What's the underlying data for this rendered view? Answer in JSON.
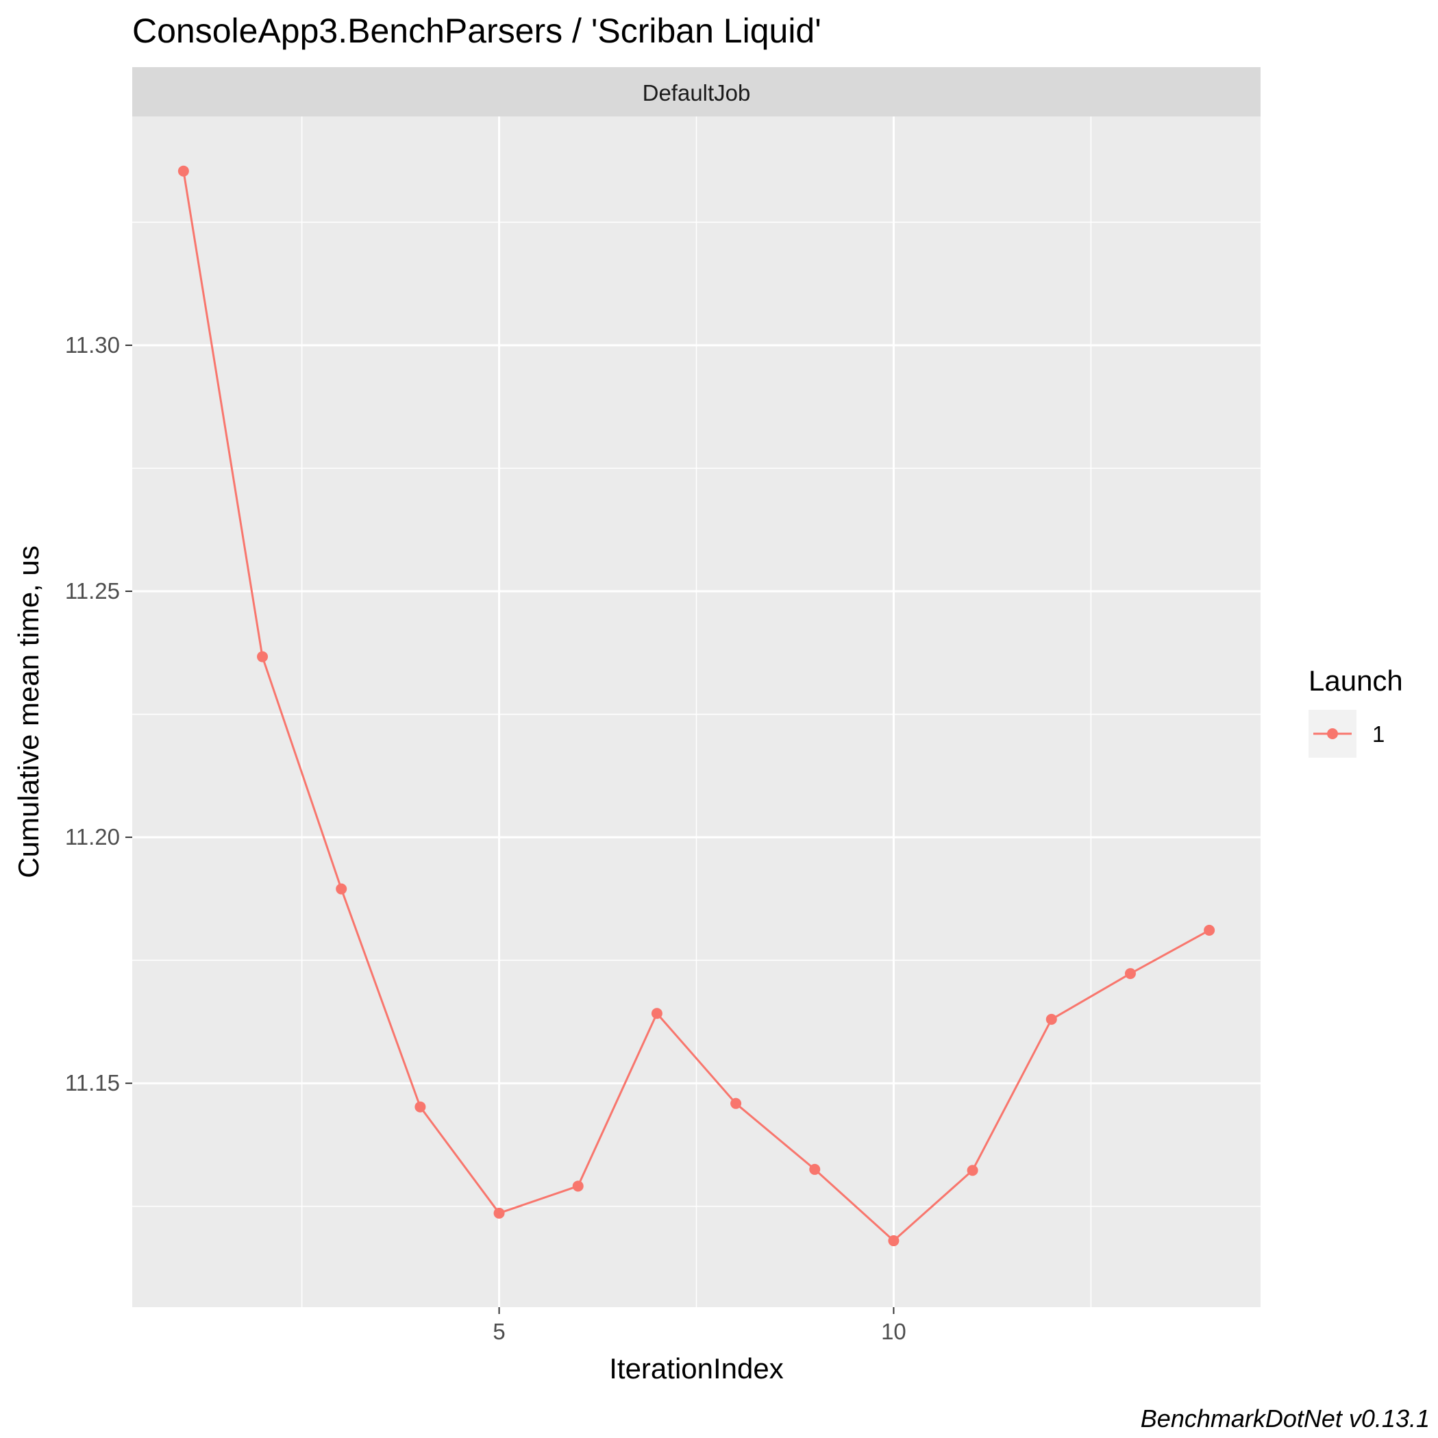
{
  "chart_data": {
    "type": "line",
    "title": "ConsoleApp3.BenchParsers / 'Scriban Liquid'",
    "facet_label": "DefaultJob",
    "xlabel": "IterationIndex",
    "ylabel": "Cumulative mean time, us",
    "caption": "BenchmarkDotNet v0.13.1",
    "xlim": [
      0.35,
      14.65
    ],
    "ylim": [
      11.1045,
      11.3465
    ],
    "x_ticks": [
      5,
      10
    ],
    "x_tick_labels": [
      "5",
      "10"
    ],
    "y_ticks": [
      11.15,
      11.2,
      11.25,
      11.3
    ],
    "y_tick_labels": [
      "11.15",
      "11.20",
      "11.25",
      "11.30"
    ],
    "grid": true,
    "legend": {
      "title": "Launch",
      "position": "right",
      "entries": [
        "1"
      ]
    },
    "series": [
      {
        "name": "1",
        "color": "#F8766D",
        "x": [
          1,
          2,
          3,
          4,
          5,
          6,
          7,
          8,
          9,
          10,
          11,
          12,
          13,
          14
        ],
        "y": [
          11.3354,
          11.2367,
          11.1895,
          11.1452,
          11.1236,
          11.1291,
          11.1642,
          11.1459,
          11.1325,
          11.118,
          11.1323,
          11.163,
          11.1723,
          11.1811
        ]
      }
    ]
  }
}
